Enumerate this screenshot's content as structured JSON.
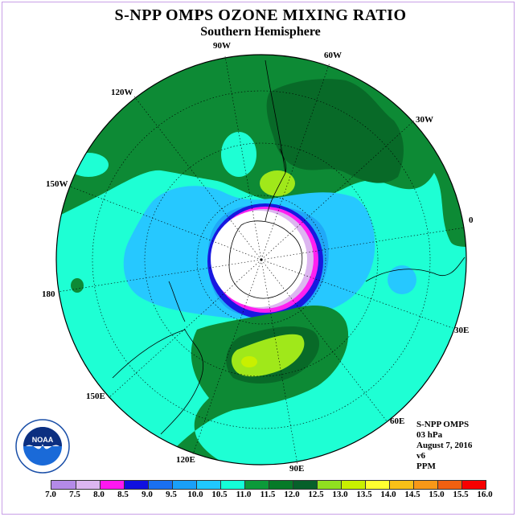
{
  "title": "S-NPP OMPS OZONE MIXING RATIO",
  "subtitle": "Southern Hemisphere",
  "longitude_labels": [
    "90W",
    "60W",
    "30W",
    "0",
    "30E",
    "60E",
    "90E",
    "120E",
    "150E",
    "180",
    "150W",
    "120W"
  ],
  "info": {
    "product": "S-NPP OMPS",
    "level": "03 hPa",
    "date": "August 7, 2016",
    "version": "v6",
    "units": "PPM"
  },
  "logo": {
    "text": "NOAA",
    "icon": "noaa-logo-icon"
  },
  "colorbar": {
    "labels": [
      "7.0",
      "7.5",
      "8.0",
      "8.5",
      "9.0",
      "9.5",
      "10.0",
      "10.5",
      "11.0",
      "11.5",
      "12.0",
      "12.5",
      "13.0",
      "13.5",
      "14.0",
      "14.5",
      "15.0",
      "15.5",
      "16.0"
    ],
    "colors": [
      "#b48ae8",
      "#dcb6f0",
      "#ff18f0",
      "#1010e0",
      "#1a70f0",
      "#1aa0f8",
      "#20c8ff",
      "#14ffd8",
      "#0c9a3a",
      "#067a28",
      "#06602a",
      "#90e020",
      "#c8f000",
      "#ffff30",
      "#f8c018",
      "#f89818",
      "#f06010",
      "#f80000",
      "#8c4a3a"
    ]
  },
  "map_colors": {
    "background_disk": "#1effd4",
    "dark_green": "#0d8a35",
    "darker_green": "#086a28",
    "light_blue": "#26c8ff",
    "mid_blue": "#20a8f8",
    "lime": "#a0e81a",
    "magenta": "#ff20f0",
    "blue": "#1818e0"
  }
}
